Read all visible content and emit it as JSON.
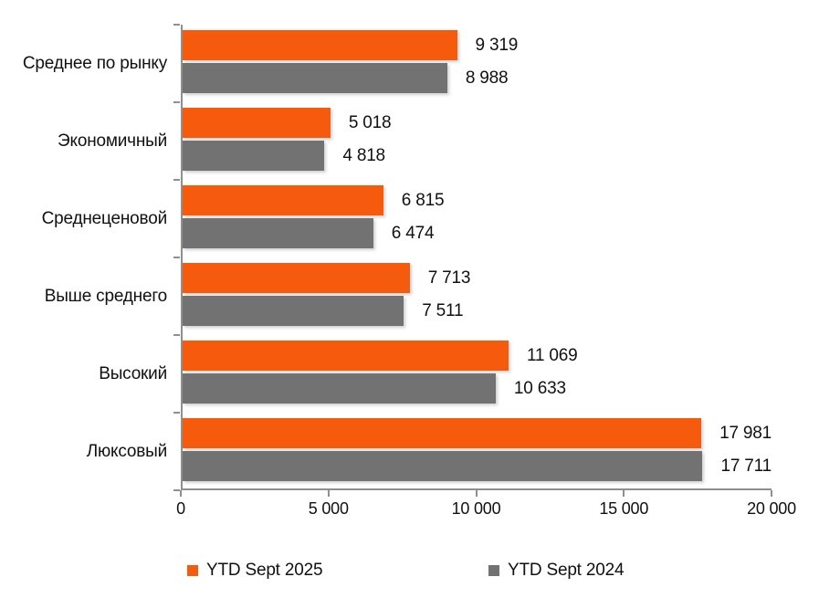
{
  "chart_data": {
    "type": "bar",
    "orientation": "horizontal",
    "title": "",
    "xlabel": "",
    "ylabel": "",
    "grid": false,
    "legend_position": "bottom",
    "categories": [
      "Среднее по рынку",
      "Экономичный",
      "Среднеценовой",
      "Выше среднего",
      "Высокий",
      "Люксовый"
    ],
    "series": [
      {
        "name": "YTD Sept 2025",
        "color": "#F65B0D",
        "values": [
          9319,
          5018,
          6815,
          7713,
          11069,
          17981
        ],
        "labels": [
          "9 319",
          "5 018",
          "6 815",
          "7 713",
          "11 069",
          "17 981"
        ]
      },
      {
        "name": "YTD Sept 2024",
        "color": "#727272",
        "values": [
          8988,
          4818,
          6474,
          7511,
          10633,
          17711
        ],
        "labels": [
          "8 988",
          "4 818",
          "6 474",
          "7 511",
          "10 633",
          "17 711"
        ]
      }
    ],
    "x_axis": {
      "min": 0,
      "max": 20000,
      "tick_step": 5000,
      "tick_labels": [
        "0",
        "5 000",
        "10 000",
        "15 000",
        "20 000"
      ]
    }
  },
  "colors": {
    "bar_2025": "#F65B0D",
    "bar_2024": "#727272",
    "axis": "#8F8F8F",
    "text": "#111111",
    "background": "#FFFFFF"
  }
}
